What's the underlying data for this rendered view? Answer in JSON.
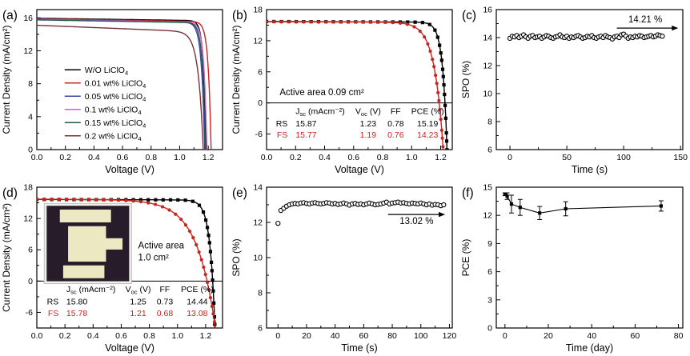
{
  "chart_data": [
    {
      "panel": "a",
      "label": "(a)",
      "type": "line",
      "xlabel": "Voltage (V)",
      "ylabel": "Current Density (mA/cm²)",
      "xlim": [
        0,
        1.3
      ],
      "ylim": [
        0,
        17
      ],
      "xticks": {
        "values": [
          0.0,
          0.2,
          0.4,
          0.6,
          0.8,
          1.0,
          1.2
        ],
        "labels": [
          "0.0",
          "0.2",
          "0.4",
          "0.6",
          "0.8",
          "1.0",
          "1.2"
        ]
      },
      "yticks": {
        "values": [
          0,
          4,
          8,
          12,
          16
        ],
        "labels": [
          "0",
          "4",
          "8",
          "12",
          "16"
        ]
      },
      "series": [
        {
          "name": "W/O LiClO~4~",
          "kind": "jv",
          "color": "#000000",
          "marker": "none",
          "jsc": 15.95,
          "slope": 0.25,
          "voc": 1.185,
          "a": 0.018
        },
        {
          "name": "0.01 wt% LiClO~4~",
          "kind": "jv",
          "color": "#c8251f",
          "marker": "none",
          "jsc": 15.9,
          "slope": 0.3,
          "voc": 1.22,
          "a": 0.02
        },
        {
          "name": "0.05 wt% LiClO~4~",
          "kind": "jv",
          "color": "#3c4aa5",
          "marker": "none",
          "jsc": 15.85,
          "slope": 0.35,
          "voc": 1.175,
          "a": 0.022
        },
        {
          "name": "0.1 wt% LiClO~4~",
          "kind": "jv",
          "color": "#d45bc8",
          "marker": "none",
          "jsc": 15.8,
          "slope": 0.3,
          "voc": 1.19,
          "a": 0.02
        },
        {
          "name": "0.15 wt% LiClO~4~",
          "kind": "jv",
          "color": "#1d5c4d",
          "marker": "none",
          "jsc": 15.75,
          "slope": 0.3,
          "voc": 1.18,
          "a": 0.02
        },
        {
          "name": "0.2 wt% LiClO~4~",
          "kind": "jv",
          "color": "#7a3038",
          "marker": "none",
          "jsc": 15.1,
          "slope": 0.7,
          "voc": 1.165,
          "a": 0.035
        }
      ],
      "legend": {
        "x": 0.15,
        "y": 0.45,
        "dy": 16.5,
        "entries": [
          {
            "label": "W/O LiClO~4~",
            "color": "#000000"
          },
          {
            "label": "0.01 wt% LiClO~4~",
            "color": "#c8251f"
          },
          {
            "label": "0.05 wt% LiClO~4~",
            "color": "#3c4aa5"
          },
          {
            "label": "0.1 wt% LiClO~4~",
            "color": "#d45bc8"
          },
          {
            "label": "0.15 wt% LiClO~4~",
            "color": "#1d5c4d"
          },
          {
            "label": "0.2 wt% LiClO~4~",
            "color": "#7a3038"
          }
        ]
      }
    },
    {
      "panel": "b",
      "label": "(b)",
      "type": "line",
      "xlabel": "Voltage (V)",
      "ylabel": "Current Density (mA/cm²)",
      "xlim": [
        0,
        1.28
      ],
      "ylim": [
        -9,
        18
      ],
      "hline": 0,
      "xticks": {
        "values": [
          0.0,
          0.2,
          0.4,
          0.6,
          0.8,
          1.0,
          1.2
        ],
        "labels": [
          "0.0",
          "0.2",
          "0.4",
          "0.6",
          "0.8",
          "1.0",
          "1.2"
        ]
      },
      "yticks": {
        "values": [
          -6,
          0,
          6,
          12,
          18
        ],
        "labels": [
          "-6",
          "0",
          "6",
          "12",
          "18"
        ]
      },
      "series": [
        {
          "name": "RS",
          "kind": "jv",
          "color": "#000000",
          "marker": "square",
          "jsc": 15.7,
          "slope": 0.1,
          "voc": 1.23,
          "a": 0.03
        },
        {
          "name": "FS",
          "kind": "jv",
          "color": "#c8251f",
          "marker": "circle",
          "jsc": 15.65,
          "slope": 0.08,
          "voc": 1.19,
          "a": 0.06
        }
      ],
      "annotations": [
        {
          "type": "text",
          "x": 0.09,
          "y": 1.5,
          "text": "Active area 0.09 cm²",
          "anchor": "start",
          "size": 11.5
        }
      ],
      "table": {
        "header_y": -2.1,
        "size": 10.5,
        "cols": [
          {
            "x": 0.145,
            "anchor": "end"
          },
          {
            "x": 0.2,
            "anchor": "start"
          },
          {
            "x": 0.7,
            "anchor": "middle"
          },
          {
            "x": 0.89,
            "anchor": "middle"
          },
          {
            "x": 1.11,
            "anchor": "middle"
          }
        ],
        "headers": [
          "",
          "J~sc~ (mAcm⁻²)",
          "V~oc~ (V)",
          "FF",
          "PCE (%)"
        ],
        "rows": [
          {
            "y": -4.5,
            "color": "#000000",
            "cells": [
              "RS",
              "15.87",
              "1.23",
              "0.78",
              "15.19"
            ]
          },
          {
            "y": -6.7,
            "color": "#c8251f",
            "cells": [
              "FS",
              "15.77",
              "1.19",
              "0.76",
              "14.23"
            ]
          }
        ]
      }
    },
    {
      "panel": "c",
      "label": "(c)",
      "type": "scatter",
      "xlabel": "Time (s)",
      "ylabel": "SPO (%)",
      "xlim": [
        -12,
        152
      ],
      "ylim": [
        6,
        16
      ],
      "xticks": {
        "values": [
          0,
          50,
          100,
          150
        ],
        "labels": [
          "0",
          "50",
          "100",
          "150"
        ]
      },
      "yticks": {
        "values": [
          6,
          8,
          10,
          12,
          14,
          16
        ],
        "labels": [
          "6",
          "8",
          "10",
          "12",
          "14",
          "16"
        ]
      },
      "series": [
        {
          "name": "SPO",
          "kind": "points",
          "color": "#000000",
          "marker": "circle-open",
          "line": false,
          "x_start": 0,
          "x_step": 2,
          "y": [
            13.95,
            14.1,
            14.05,
            14.15,
            14.0,
            14.1,
            14.2,
            14.05,
            13.95,
            14.1,
            14.15,
            14.0,
            14.05,
            14.1,
            13.95,
            14.05,
            14.15,
            14.1,
            14.0,
            13.95,
            14.05,
            14.1,
            14.2,
            14.05,
            14.0,
            14.1,
            13.95,
            14.05,
            14.0,
            14.1,
            14.15,
            14.05,
            13.95,
            14.0,
            14.1,
            14.05,
            14.15,
            14.0,
            13.95,
            14.05,
            14.1,
            14.0,
            14.15,
            14.05,
            14.0,
            13.9,
            14.05,
            14.1,
            14.0,
            14.2,
            14.25,
            14.1,
            13.95,
            14.05,
            14.0,
            14.1,
            14.05,
            14.15,
            14.1,
            14.0,
            14.05,
            14.1,
            14.15,
            14.05,
            14.1,
            14.2,
            14.15,
            14.1
          ]
        }
      ],
      "annotations": [
        {
          "type": "text",
          "x": 119,
          "y": 15.1,
          "text": "14.21 %",
          "anchor": "middle",
          "size": 11.5
        },
        {
          "type": "arrow",
          "x1": 94,
          "y1": 14.68,
          "x2": 148,
          "y2": 14.68
        }
      ]
    },
    {
      "panel": "d",
      "label": "(d)",
      "type": "line",
      "xlabel": "Voltage (V)",
      "ylabel": "Current Density (mA/cm²)",
      "xlim": [
        0,
        1.32
      ],
      "ylim": [
        -9,
        18
      ],
      "hline": 0,
      "xticks": {
        "values": [
          0.0,
          0.2,
          0.4,
          0.6,
          0.8,
          1.0,
          1.2
        ],
        "labels": [
          "0.0",
          "0.2",
          "0.4",
          "0.6",
          "0.8",
          "1.0",
          "1.2"
        ]
      },
      "yticks": {
        "values": [
          -6,
          0,
          6,
          12,
          18
        ],
        "labels": [
          "-6",
          "0",
          "6",
          "12",
          "18"
        ]
      },
      "series": [
        {
          "name": "RS",
          "kind": "jv",
          "color": "#000000",
          "marker": "square",
          "jsc": 15.65,
          "slope": 0.08,
          "voc": 1.25,
          "a": 0.035
        },
        {
          "name": "FS",
          "kind": "jv",
          "color": "#c8251f",
          "marker": "circle",
          "jsc": 15.7,
          "slope": 0.1,
          "voc": 1.21,
          "a": 0.13
        }
      ],
      "annotations": [
        {
          "type": "text",
          "x": 0.72,
          "y": 6.3,
          "text": "Active area",
          "anchor": "start",
          "size": 11.5
        },
        {
          "type": "text",
          "x": 0.72,
          "y": 4.0,
          "text": "1.0 cm²",
          "anchor": "start",
          "size": 11.5
        }
      ],
      "inset": {
        "x": 0.04,
        "y": 0.115,
        "w": 0.47,
        "h": 0.57,
        "frame": "#f0eee8",
        "bg": "#261c2a",
        "shape_color": "#ece8c2",
        "shapes": [
          [
            0.16,
            0.05,
            0.62,
            0.17
          ],
          [
            0.26,
            0.27,
            0.46,
            0.47
          ],
          [
            0.7,
            0.43,
            0.22,
            0.15
          ],
          [
            0.2,
            0.79,
            0.5,
            0.17
          ]
        ]
      },
      "table": {
        "header_y": -2.1,
        "size": 10.5,
        "cols": [
          {
            "x": 0.155,
            "anchor": "end"
          },
          {
            "x": 0.21,
            "anchor": "start"
          },
          {
            "x": 0.72,
            "anchor": "middle"
          },
          {
            "x": 0.91,
            "anchor": "middle"
          },
          {
            "x": 1.14,
            "anchor": "middle"
          }
        ],
        "headers": [
          "",
          "J~sc~ (mAcm⁻²)",
          "V~oc~ (V)",
          "FF",
          "PCE (%)"
        ],
        "rows": [
          {
            "y": -4.5,
            "color": "#000000",
            "cells": [
              "RS",
              "15.80",
              "1.25",
              "0.73",
              "14.44"
            ]
          },
          {
            "y": -6.7,
            "color": "#c8251f",
            "cells": [
              "FS",
              "15.78",
              "1.21",
              "0.68",
              "13.08"
            ]
          }
        ]
      }
    },
    {
      "panel": "e",
      "label": "(e)",
      "type": "scatter",
      "xlabel": "Time (s)",
      "ylabel": "SPO (%)",
      "xlim": [
        -8,
        122
      ],
      "ylim": [
        6,
        14
      ],
      "xticks": {
        "values": [
          0,
          20,
          40,
          60,
          80,
          100,
          120
        ],
        "labels": [
          "0",
          "20",
          "40",
          "60",
          "80",
          "100",
          "120"
        ]
      },
      "yticks": {
        "values": [
          6,
          8,
          10,
          12,
          14
        ],
        "labels": [
          "6",
          "8",
          "10",
          "12",
          "14"
        ]
      },
      "series": [
        {
          "name": "SPO",
          "kind": "points",
          "color": "#000000",
          "marker": "circle-open",
          "line": false,
          "x_start": 0,
          "x_step": 2,
          "y": [
            11.95,
            12.68,
            12.8,
            12.92,
            13.0,
            13.05,
            13.08,
            13.05,
            13.1,
            13.12,
            13.08,
            13.05,
            13.1,
            13.12,
            13.08,
            13.05,
            13.08,
            13.12,
            13.1,
            13.05,
            13.08,
            13.02,
            13.05,
            13.1,
            13.05,
            12.98,
            13.05,
            13.08,
            13.02,
            13.05,
            13.0,
            13.05,
            13.1,
            13.05,
            13.0,
            13.02,
            13.05,
            13.1,
            13.15,
            13.05,
            13.1,
            13.12,
            13.15,
            13.1,
            13.12,
            13.08,
            13.05,
            13.1,
            13.08,
            13.05,
            13.1,
            13.05,
            13.0,
            13.05,
            12.98,
            13.02,
            13.0,
            12.95,
            13.0
          ]
        }
      ],
      "annotations": [
        {
          "type": "arrow",
          "x1": 77,
          "y1": 12.45,
          "x2": 117,
          "y2": 12.45
        },
        {
          "type": "text",
          "x": 97,
          "y": 11.9,
          "text": "13.02 %",
          "anchor": "middle",
          "size": 11.5
        }
      ]
    },
    {
      "panel": "f",
      "label": "(f)",
      "type": "line",
      "xlabel": "Time (day)",
      "ylabel": "PCE (%)",
      "xlim": [
        -4,
        82
      ],
      "ylim": [
        0,
        15
      ],
      "xticks": {
        "values": [
          0,
          20,
          40,
          60,
          80
        ],
        "labels": [
          "0",
          "20",
          "40",
          "60",
          "80"
        ]
      },
      "yticks": {
        "values": [
          0,
          3,
          6,
          9,
          12,
          15
        ],
        "labels": [
          "0",
          "3",
          "6",
          "9",
          "12",
          "15"
        ]
      },
      "series": [
        {
          "name": "PCE",
          "kind": "errorbar",
          "color": "#000000",
          "marker": "square",
          "data": [
            [
              0,
              14.25,
              0.15
            ],
            [
              1,
              14.05,
              0.35
            ],
            [
              3,
              13.2,
              0.95
            ],
            [
              7,
              12.85,
              0.85
            ],
            [
              16,
              12.25,
              0.7
            ],
            [
              28,
              12.7,
              0.75
            ],
            [
              72,
              13.0,
              0.55
            ]
          ]
        }
      ]
    }
  ]
}
